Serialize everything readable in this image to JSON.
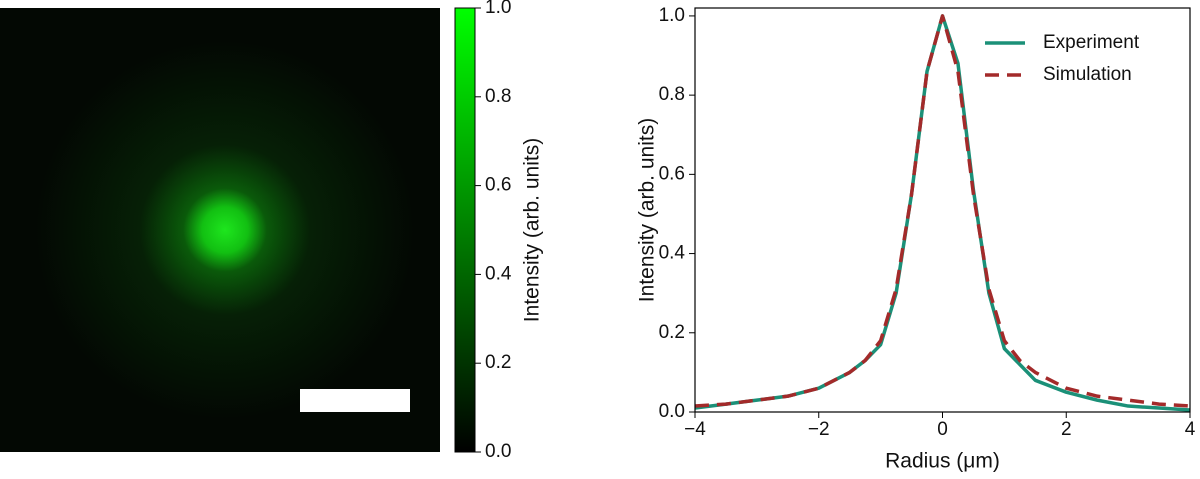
{
  "chart_data": [
    {
      "type": "image",
      "colorbar": {
        "label": "Intensity (arb. units)",
        "ylim": [
          0,
          1
        ],
        "yticks": [
          {
            "value": 0,
            "label": "0.0"
          },
          0.2,
          0.4,
          0.6,
          0.8,
          {
            "value": 1,
            "label": "1.0"
          }
        ],
        "colors": [
          "#000000",
          "#00ff00"
        ]
      }
    },
    {
      "type": "line",
      "xlabel": "Radius (μm)",
      "ylabel": "Intensity (arb. units)",
      "x": [
        -4,
        -3.5,
        -3,
        -2.5,
        -2,
        -1.5,
        -1.25,
        -1,
        -0.75,
        -0.5,
        -0.25,
        0,
        0.25,
        0.5,
        0.75,
        1,
        1.25,
        1.5,
        2,
        2.5,
        3,
        3.5,
        4
      ],
      "series": [
        {
          "name": "Experiment",
          "color": "#1b9078",
          "dash": false,
          "values": [
            0.01,
            0.02,
            0.03,
            0.04,
            0.06,
            0.1,
            0.13,
            0.17,
            0.3,
            0.55,
            0.86,
            1.0,
            0.88,
            0.56,
            0.3,
            0.16,
            0.12,
            0.08,
            0.05,
            0.03,
            0.015,
            0.01,
            0.005
          ]
        },
        {
          "name": "Simulation",
          "color": "#a32a2a",
          "dash": true,
          "values": [
            0.015,
            0.02,
            0.03,
            0.04,
            0.06,
            0.1,
            0.13,
            0.18,
            0.31,
            0.55,
            0.86,
            1.0,
            0.86,
            0.55,
            0.31,
            0.18,
            0.13,
            0.1,
            0.06,
            0.04,
            0.03,
            0.02,
            0.015
          ]
        }
      ],
      "xlim": [
        -4,
        4
      ],
      "xticks": [
        {
          "value": -4,
          "label": "−4"
        },
        {
          "value": -2,
          "label": "−2"
        },
        0,
        2,
        4
      ],
      "ylim": [
        0,
        1.02
      ],
      "yticks": [
        {
          "value": 0,
          "label": "0.0"
        },
        0.2,
        0.4,
        0.6,
        0.8,
        {
          "value": 1,
          "label": "1.0"
        }
      ],
      "legend": "upper right"
    }
  ]
}
